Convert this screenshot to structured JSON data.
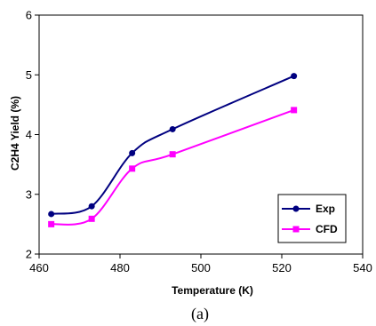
{
  "chart_data": {
    "type": "line",
    "xlabel": "Temperature (K)",
    "ylabel": "C2H4 Yield (%)",
    "xlim": [
      460,
      540
    ],
    "ylim": [
      2,
      6
    ],
    "xticks": [
      460,
      480,
      500,
      520,
      540
    ],
    "yticks": [
      2,
      3,
      4,
      5,
      6
    ],
    "grid": false,
    "legend_position": "bottom-right",
    "series": [
      {
        "name": "Exp",
        "color": "#000080",
        "marker": "circle",
        "x": [
          463,
          473,
          483,
          493,
          523
        ],
        "y": [
          2.67,
          2.8,
          3.69,
          4.09,
          4.98
        ]
      },
      {
        "name": "CFD",
        "color": "#ff00ff",
        "marker": "square",
        "x": [
          463,
          473,
          483,
          493,
          523
        ],
        "y": [
          2.5,
          2.59,
          3.43,
          3.67,
          4.41
        ]
      }
    ]
  },
  "caption": "(a)"
}
